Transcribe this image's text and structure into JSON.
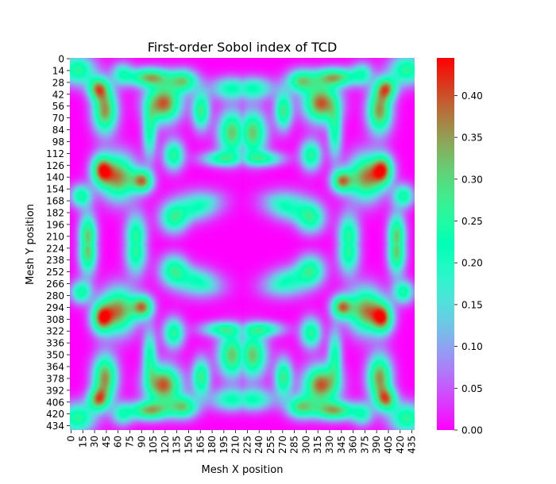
{
  "chart_data": {
    "type": "heatmap",
    "title": "First-order Sobol index of TCD",
    "xlabel": "Mesh X position",
    "ylabel": "Mesh Y position",
    "x_ticks": [
      "0",
      "15",
      "30",
      "45",
      "60",
      "75",
      "90",
      "105",
      "120",
      "135",
      "150",
      "165",
      "180",
      "195",
      "210",
      "225",
      "240",
      "255",
      "270",
      "285",
      "300",
      "315",
      "330",
      "345",
      "360",
      "375",
      "390",
      "405",
      "420",
      "435"
    ],
    "y_ticks": [
      "0",
      "14",
      "28",
      "42",
      "56",
      "70",
      "84",
      "98",
      "112",
      "126",
      "140",
      "154",
      "168",
      "182",
      "196",
      "210",
      "224",
      "238",
      "252",
      "266",
      "280",
      "294",
      "308",
      "322",
      "336",
      "350",
      "364",
      "378",
      "392",
      "406",
      "420",
      "434"
    ],
    "x_range": [
      0,
      440
    ],
    "y_range": [
      0,
      440
    ],
    "colorbar": {
      "min": 0.0,
      "max": 0.445,
      "ticks": [
        "0.00",
        "0.05",
        "0.10",
        "0.15",
        "0.20",
        "0.25",
        "0.30",
        "0.35",
        "0.40"
      ],
      "colormap": "rainbow"
    },
    "colors": {
      "low": "#8000ff",
      "mid": "#80ffb4",
      "high": "#ff0000"
    }
  }
}
